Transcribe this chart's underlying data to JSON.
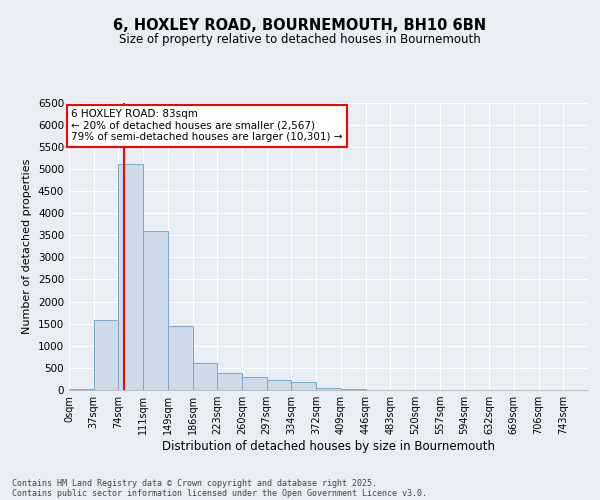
{
  "title_line1": "6, HOXLEY ROAD, BOURNEMOUTH, BH10 6BN",
  "title_line2": "Size of property relative to detached houses in Bournemouth",
  "xlabel": "Distribution of detached houses by size in Bournemouth",
  "ylabel": "Number of detached properties",
  "bar_labels": [
    "0sqm",
    "37sqm",
    "74sqm",
    "111sqm",
    "149sqm",
    "186sqm",
    "223sqm",
    "260sqm",
    "297sqm",
    "334sqm",
    "372sqm",
    "409sqm",
    "446sqm",
    "483sqm",
    "520sqm",
    "557sqm",
    "594sqm",
    "632sqm",
    "669sqm",
    "706sqm",
    "743sqm"
  ],
  "bar_values": [
    30,
    1580,
    5100,
    3600,
    1450,
    620,
    380,
    290,
    230,
    180,
    50,
    30,
    10,
    0,
    0,
    0,
    0,
    0,
    0,
    0,
    0
  ],
  "bar_color": "#ccdaea",
  "bar_edge_color": "#7aaac8",
  "ylim": [
    0,
    6500
  ],
  "yticks": [
    0,
    500,
    1000,
    1500,
    2000,
    2500,
    3000,
    3500,
    4000,
    4500,
    5000,
    5500,
    6000,
    6500
  ],
  "annotation_title": "6 HOXLEY ROAD: 83sqm",
  "annotation_line1": "← 20% of detached houses are smaller (2,567)",
  "annotation_line2": "79% of semi-detached houses are larger (10,301) →",
  "footnote_line1": "Contains HM Land Registry data © Crown copyright and database right 2025.",
  "footnote_line2": "Contains public sector information licensed under the Open Government Licence v3.0.",
  "background_color": "#e8eef4",
  "plot_bg_color": "#e8eef4",
  "grid_color": "#ffffff",
  "bin_width": 37,
  "red_line_x": 83.0
}
